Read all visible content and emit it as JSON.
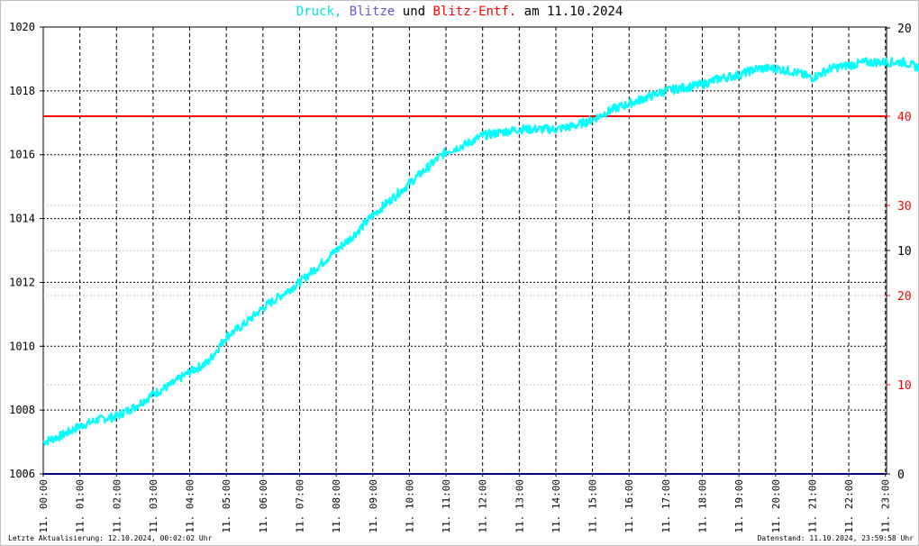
{
  "title": {
    "part1": "Druck,",
    "part2": "Blitze",
    "part3": "und",
    "part4": "Blitz-Entf.",
    "part5": "am 11.10.2024"
  },
  "colors": {
    "pressure": "#00ffff",
    "lightning": "#6a5acd",
    "distance": "#ff0000",
    "text": "#000000",
    "axis_line": "#000080"
  },
  "footer": {
    "left": "Letzte Aktualisierung: 12.10.2024, 00:02:02 Uhr",
    "right": "Datenstand: 11.10.2024, 23:59:58 Uhr"
  },
  "chart_data": {
    "type": "line",
    "title": "Druck, Blitze und Blitz-Entf. am 11.10.2024",
    "x_label_prefix": "11.",
    "x_ticks": [
      "00:00",
      "01:00",
      "02:00",
      "03:00",
      "04:00",
      "05:00",
      "06:00",
      "07:00",
      "08:00",
      "09:00",
      "10:00",
      "11:00",
      "12:00",
      "13:00",
      "14:00",
      "15:00",
      "16:00",
      "17:00",
      "18:00",
      "19:00",
      "20:00",
      "21:00",
      "22:00",
      "23:00"
    ],
    "y_left": {
      "label": "Druck",
      "min": 1006,
      "max": 1020,
      "ticks": [
        "1006",
        "1008",
        "1010",
        "1012",
        "1014",
        "1016",
        "1018",
        "1020"
      ]
    },
    "y_right_black": {
      "ticks": [
        "0",
        "10",
        "20"
      ],
      "values": [
        0,
        10,
        20
      ]
    },
    "y_right_red": {
      "label": "Blitz-Entf.",
      "ticks": [
        "10",
        "20",
        "30",
        "40"
      ],
      "values": [
        10,
        20,
        30,
        40
      ]
    },
    "grid": true,
    "series": [
      {
        "name": "Druck",
        "x_hours": [
          0,
          0.5,
          1,
          1.5,
          2,
          2.5,
          3,
          3.5,
          4,
          4.5,
          5,
          5.5,
          6,
          6.5,
          7,
          7.5,
          8,
          8.5,
          9,
          9.5,
          10,
          10.5,
          11,
          11.5,
          12,
          12.5,
          13,
          13.5,
          14,
          14.5,
          15,
          15.5,
          16,
          16.5,
          17,
          17.5,
          18,
          18.5,
          19,
          19.5,
          20,
          20.5,
          21,
          21.5,
          22,
          22.5,
          23,
          23.5,
          23.98
        ],
        "values": [
          1007.0,
          1007.2,
          1007.5,
          1007.7,
          1007.8,
          1008.1,
          1008.5,
          1008.8,
          1009.2,
          1009.5,
          1010.3,
          1010.7,
          1011.2,
          1011.6,
          1012.0,
          1012.5,
          1013.0,
          1013.5,
          1014.1,
          1014.6,
          1015.1,
          1015.6,
          1016.1,
          1016.3,
          1016.6,
          1016.7,
          1016.8,
          1016.8,
          1016.8,
          1016.9,
          1017.1,
          1017.4,
          1017.6,
          1017.8,
          1018.0,
          1018.1,
          1018.2,
          1018.4,
          1018.5,
          1018.7,
          1018.7,
          1018.6,
          1018.4,
          1018.7,
          1018.8,
          1018.9,
          1018.9,
          1018.9,
          1018.7
        ]
      },
      {
        "name": "Blitz-Entf.",
        "values_constant": 40
      }
    ]
  }
}
